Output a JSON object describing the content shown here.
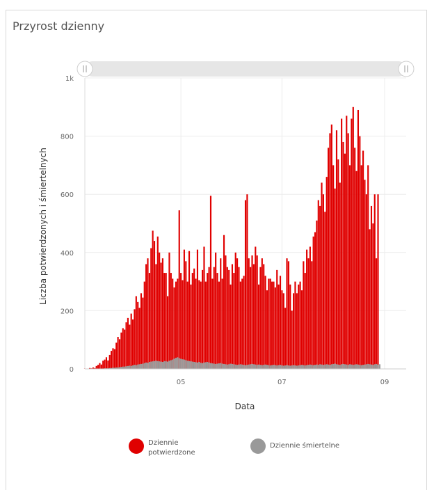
{
  "panel": {
    "title": "Przyrost dzienny"
  },
  "colors": {
    "confirmed": "#e00000",
    "deaths": "#999999",
    "grid": "#ececec",
    "navigator": "#e6e6e6"
  },
  "chart_data": {
    "type": "bar",
    "xlabel": "Data",
    "ylabel": "Liczba potwierdzonych i śmiertelnych",
    "ylim": [
      0,
      1000
    ],
    "y_ticks": [
      {
        "value": 0,
        "label": "0"
      },
      {
        "value": 200,
        "label": "200"
      },
      {
        "value": 400,
        "label": "400"
      },
      {
        "value": 600,
        "label": "600"
      },
      {
        "value": 800,
        "label": "800"
      },
      {
        "value": 1000,
        "label": "1k"
      }
    ],
    "xlim": [
      "2020-03-04",
      "2020-09-14"
    ],
    "x_ticks": [
      {
        "date": "2020-05-01",
        "label": "05"
      },
      {
        "date": "2020-07-01",
        "label": "07"
      },
      {
        "date": "2020-09-01",
        "label": "09"
      }
    ],
    "legend_position": "bottom",
    "grid": true,
    "series": [
      {
        "name": "Dziennie potwierdzone",
        "color": "#e00000",
        "start_date": "2020-03-04",
        "values": [
          1,
          0,
          1,
          3,
          2,
          5,
          3,
          10,
          14,
          20,
          15,
          28,
          32,
          40,
          29,
          48,
          62,
          71,
          68,
          90,
          110,
          102,
          125,
          140,
          135,
          160,
          175,
          152,
          190,
          170,
          205,
          250,
          230,
          210,
          260,
          245,
          300,
          360,
          380,
          330,
          415,
          475,
          440,
          360,
          455,
          400,
          365,
          380,
          330,
          330,
          250,
          400,
          330,
          310,
          280,
          300,
          310,
          545,
          330,
          305,
          410,
          370,
          300,
          405,
          290,
          330,
          345,
          310,
          410,
          305,
          300,
          340,
          420,
          300,
          330,
          350,
          595,
          310,
          350,
          400,
          330,
          300,
          380,
          310,
          460,
          390,
          350,
          340,
          290,
          360,
          330,
          400,
          380,
          350,
          300,
          310,
          320,
          580,
          600,
          380,
          350,
          390,
          360,
          420,
          390,
          290,
          350,
          380,
          360,
          320,
          270,
          310,
          310,
          300,
          300,
          280,
          340,
          290,
          320,
          270,
          260,
          210,
          380,
          370,
          290,
          200,
          260,
          300,
          260,
          290,
          300,
          270,
          370,
          330,
          410,
          380,
          420,
          370,
          455,
          470,
          510,
          580,
          560,
          640,
          600,
          540,
          660,
          760,
          810,
          840,
          700,
          620,
          820,
          720,
          640,
          860,
          780,
          740,
          870,
          810,
          700,
          860,
          900,
          760,
          680,
          890,
          800,
          700,
          750,
          650,
          600,
          700,
          480,
          560,
          500,
          600,
          380,
          600
        ]
      },
      {
        "name": "Dziennie śmiertelne",
        "color": "#999999",
        "start_date": "2020-03-04",
        "values": [
          0,
          0,
          0,
          0,
          0,
          0,
          0,
          0,
          0,
          1,
          1,
          1,
          2,
          2,
          2,
          3,
          3,
          4,
          4,
          5,
          5,
          6,
          7,
          8,
          8,
          9,
          10,
          11,
          10,
          12,
          14,
          13,
          15,
          16,
          17,
          18,
          20,
          22,
          21,
          24,
          25,
          26,
          27,
          28,
          27,
          26,
          25,
          24,
          27,
          26,
          25,
          28,
          30,
          32,
          35,
          38,
          40,
          37,
          35,
          33,
          32,
          30,
          28,
          27,
          26,
          25,
          24,
          23,
          22,
          24,
          21,
          20,
          22,
          23,
          24,
          22,
          20,
          19,
          18,
          17,
          18,
          19,
          20,
          18,
          17,
          16,
          15,
          16,
          18,
          17,
          16,
          15,
          14,
          15,
          16,
          15,
          14,
          13,
          14,
          15,
          16,
          17,
          16,
          15,
          14,
          15,
          14,
          13,
          14,
          15,
          14,
          13,
          12,
          13,
          14,
          13,
          12,
          13,
          14,
          12,
          11,
          12,
          13,
          12,
          11,
          12,
          13,
          12,
          11,
          12,
          13,
          14,
          13,
          12,
          13,
          14,
          15,
          14,
          13,
          14,
          15,
          14,
          16,
          15,
          14,
          15,
          16,
          15,
          14,
          16,
          17,
          18,
          16,
          15,
          14,
          16,
          17,
          16,
          15,
          14,
          16,
          15,
          14,
          15,
          16,
          15,
          14,
          13,
          14,
          15,
          16,
          17,
          16,
          15,
          14,
          16,
          17,
          15,
          16
        ]
      }
    ]
  }
}
